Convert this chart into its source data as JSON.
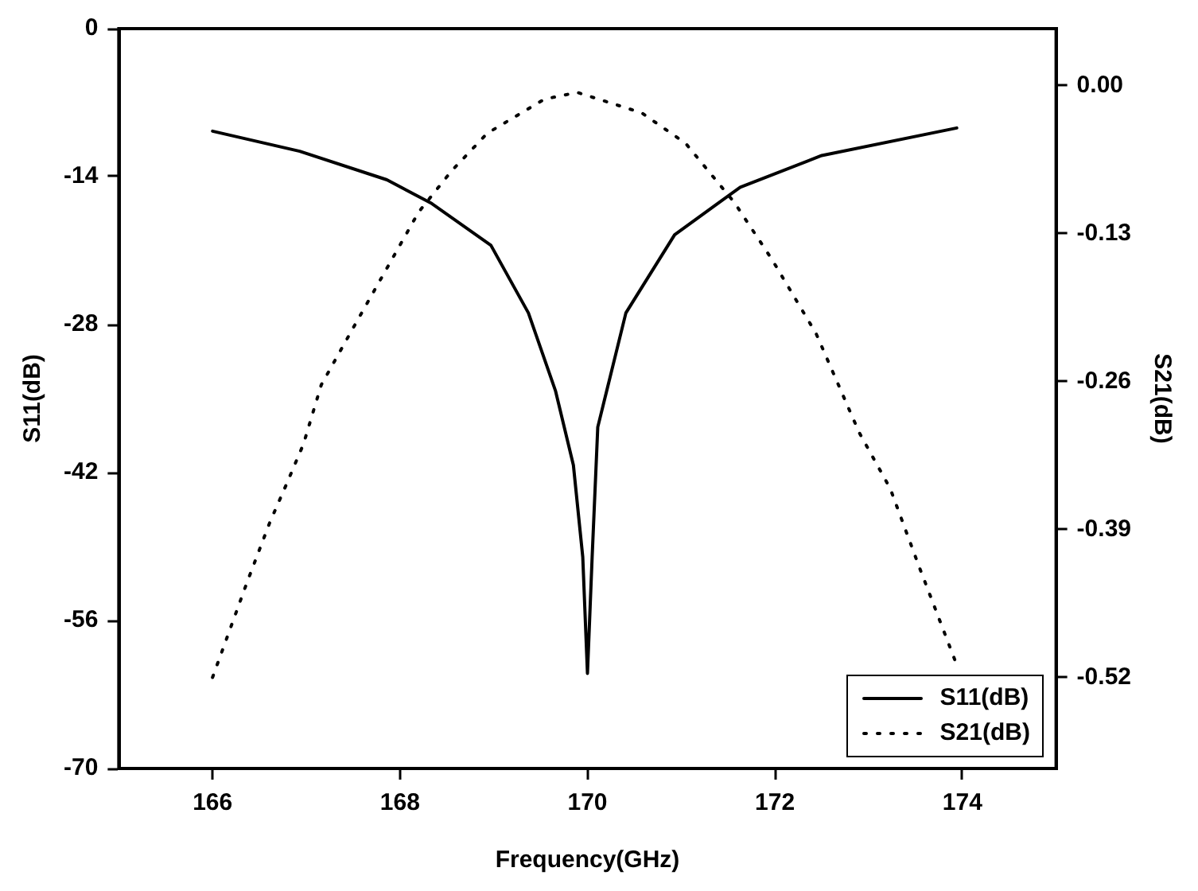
{
  "chart_data": {
    "type": "line",
    "xlabel": "Frequency(GHz)",
    "ylabel": "S11(dB)",
    "y2label": "S21(dB)",
    "xlim": [
      165,
      175
    ],
    "xticks": [
      166,
      168,
      170,
      172,
      174
    ],
    "ylim": [
      -70,
      0
    ],
    "yticks": [
      -70,
      -56,
      -42,
      -28,
      -14,
      0
    ],
    "y2lim": [
      -0.6,
      0.05
    ],
    "y2ticks": [
      {
        "value": -0.52,
        "label": "-0.52"
      },
      {
        "value": -0.39,
        "label": "-0.39"
      },
      {
        "value": -0.26,
        "label": "-0.26"
      },
      {
        "value": -0.13,
        "label": "-0.13"
      },
      {
        "value": 0,
        "label": "0.00"
      }
    ],
    "grid": false,
    "legend": "bottom right",
    "marker": "none",
    "series": [
      {
        "name": "S11(dB)",
        "color": "#000000",
        "line_style": "solid",
        "x": [
          166,
          166.93,
          167.86,
          168.33,
          168.97,
          169.37,
          169.66,
          169.85,
          169.95,
          170,
          170.05,
          170.11,
          170.41,
          170.93,
          171.63,
          172.5,
          173.94
        ],
        "values": [
          -9.7,
          -11.6,
          -14.3,
          -16.5,
          -20.5,
          -26.9,
          -34.3,
          -41.3,
          -50,
          -61,
          -50,
          -37.7,
          -26.9,
          -19.5,
          -15,
          -12,
          -9.4
        ]
      },
      {
        "name": "S21(dB)",
        "color": "#000000",
        "axis": "y2",
        "line_style": "dotted",
        "x": [
          166,
          166.37,
          166.61,
          166.79,
          166.97,
          167.16,
          167.5,
          167.85,
          168.2,
          168.55,
          168.93,
          169.54,
          169.89,
          170.58,
          171.05,
          171.57,
          171.97,
          172.44,
          172.9,
          173.23,
          173.54,
          173.94
        ],
        "values": [
          -0.52,
          -0.436,
          -0.384,
          -0.35,
          -0.315,
          -0.263,
          -0.213,
          -0.162,
          -0.111,
          -0.075,
          -0.042,
          -0.012,
          -0.006,
          -0.024,
          -0.051,
          -0.103,
          -0.153,
          -0.218,
          -0.305,
          -0.354,
          -0.423,
          -0.509
        ]
      }
    ]
  }
}
